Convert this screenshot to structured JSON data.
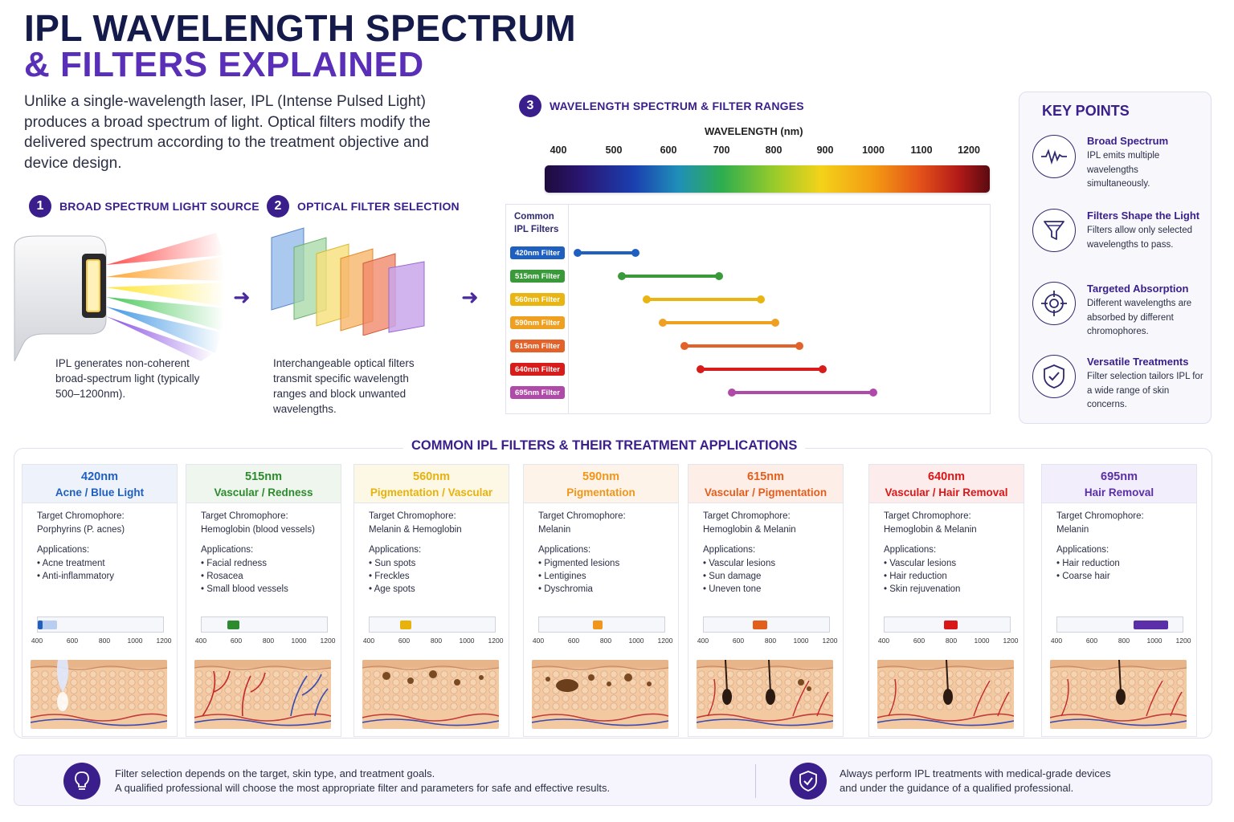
{
  "title": {
    "line1": "IPL WAVELENGTH SPECTRUM",
    "line2": "& FILTERS EXPLAINED"
  },
  "intro": "Unlike a single-wavelength laser, IPL (Intense Pulsed Light) produces a broad spectrum of light. Optical filters modify the delivered spectrum according to the treatment objective and device design.",
  "steps": [
    {
      "num": "1",
      "label": "BROAD SPECTRUM LIGHT SOURCE",
      "caption": "IPL generates non-coherent broad-spectrum light (typically 500–1200nm)."
    },
    {
      "num": "2",
      "label": "OPTICAL FILTER SELECTION",
      "caption": "Interchangeable optical filters transmit specific wavelength ranges and block unwanted wavelengths."
    },
    {
      "num": "3",
      "label": "WAVELENGTH SPECTRUM & FILTER RANGES"
    }
  ],
  "spectrum": {
    "axis_title": "WAVELENGTH (nm)",
    "ticks": [
      "400",
      "500",
      "600",
      "700",
      "800",
      "900",
      "1000",
      "1100",
      "1200"
    ],
    "filters_heading": "Common IPL Filters",
    "filters": [
      {
        "label": "420nm Filter",
        "start": 400,
        "end": 540,
        "color": "#1f5fbf"
      },
      {
        "label": "515nm Filter",
        "start": 515,
        "end": 695,
        "color": "#3a9a3a"
      },
      {
        "label": "560nm Filter",
        "start": 560,
        "end": 775,
        "color": "#e8b512"
      },
      {
        "label": "590nm Filter",
        "start": 590,
        "end": 803,
        "color": "#f0a020"
      },
      {
        "label": "615nm Filter",
        "start": 630,
        "end": 850,
        "color": "#e2622a"
      },
      {
        "label": "640nm Filter",
        "start": 660,
        "end": 895,
        "color": "#d81c1c"
      },
      {
        "label": "695nm Filter",
        "start": 720,
        "end": 1000,
        "color": "#b04aa8"
      }
    ]
  },
  "key_points": {
    "title": "KEY POINTS",
    "items": [
      {
        "icon": "waveform-icon",
        "heading": "Broad Spectrum",
        "text": "IPL emits multiple wavelengths simultaneously."
      },
      {
        "icon": "funnel-icon",
        "heading": "Filters Shape the Light",
        "text": "Filters allow only selected wavelengths to pass."
      },
      {
        "icon": "target-icon",
        "heading": "Targeted Absorption",
        "text": "Different wavelengths are absorbed by different chromophores."
      },
      {
        "icon": "shield-check-icon",
        "heading": "Versatile Treatments",
        "text": "Filter selection tailors IPL for a wide range of skin concerns."
      }
    ]
  },
  "treatments": {
    "title": "COMMON IPL FILTERS & THEIR TREATMENT APPLICATIONS",
    "target_label": "Target Chromophore:",
    "applications_label": "Applications:",
    "mini_ticks": [
      "400",
      "600",
      "800",
      "1000",
      "1200"
    ],
    "cards": [
      {
        "nm": "420nm",
        "use": "Acne / Blue Light",
        "chromophore": "Porphyrins (P. acnes)",
        "apps": [
          "• Acne treatment",
          "• Anti-inflammatory"
        ],
        "color": "#1f5fbf",
        "head_bg": "#eef3fb",
        "start": 400,
        "end": 430,
        "tail_end": 520,
        "skin": "acne"
      },
      {
        "nm": "515nm",
        "use": "Vascular / Redness",
        "chromophore": "Hemoglobin (blood vessels)",
        "apps": [
          "• Facial redness",
          "• Rosacea",
          "• Small blood vessels"
        ],
        "color": "#2e8a2e",
        "head_bg": "#eef6ee",
        "start": 560,
        "end": 640,
        "skin": "vessels"
      },
      {
        "nm": "560nm",
        "use": "Pigmentation / Vascular",
        "chromophore": "Melanin & Hemoglobin",
        "apps": [
          "• Sun spots",
          "• Freckles",
          "• Age spots"
        ],
        "color": "#e7b20c",
        "head_bg": "#fdf8e6",
        "start": 590,
        "end": 665,
        "skin": "spots"
      },
      {
        "nm": "590nm",
        "use": "Pigmentation",
        "chromophore": "Melanin",
        "apps": [
          "• Pigmented lesions",
          "• Lentigines",
          "• Dyschromia"
        ],
        "color": "#f0961a",
        "head_bg": "#fdf3e8",
        "start": 740,
        "end": 800,
        "skin": "pigment"
      },
      {
        "nm": "615nm",
        "use": "Vascular / Pigmentation",
        "chromophore": "Hemoglobin & Melanin",
        "apps": [
          "• Vascular lesions",
          "• Sun damage",
          "• Uneven tone"
        ],
        "color": "#e25e1c",
        "head_bg": "#fdefe8",
        "start": 710,
        "end": 800,
        "skin": "hair-vessels"
      },
      {
        "nm": "640nm",
        "use": "Vascular / Hair Removal",
        "chromophore": "Hemoglobin & Melanin",
        "apps": [
          "• Vascular lesions",
          "• Hair reduction",
          "• Skin rejuvenation"
        ],
        "color": "#d81818",
        "head_bg": "#fcecec",
        "start": 775,
        "end": 860,
        "skin": "hair"
      },
      {
        "nm": "695nm",
        "use": "Hair Removal",
        "chromophore": "Melanin",
        "apps": [
          "• Hair reduction",
          "• Coarse hair"
        ],
        "color": "#5a2fa8",
        "head_bg": "#f2eefb",
        "start": 880,
        "end": 1100,
        "skin": "hair2"
      }
    ]
  },
  "footer": {
    "left_line1": "Filter selection depends on the target, skin type, and treatment goals.",
    "left_line2": "A qualified professional will choose the most appropriate filter and parameters for safe and effective results.",
    "right_line1": "Always perform IPL treatments with medical-grade devices",
    "right_line2": "and under the guidance of a qualified professional."
  }
}
